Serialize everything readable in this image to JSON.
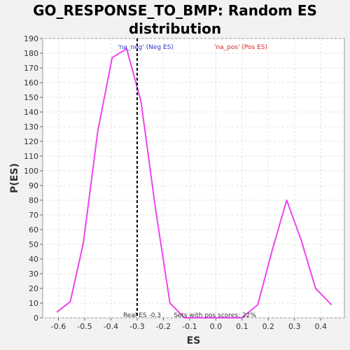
{
  "chart_data": {
    "type": "line",
    "title_line1": "GO_RESPONSE_TO_BMP: Random ES",
    "title_line2": "distribution",
    "xlabel": "ES",
    "ylabel": "P(ES)",
    "xlim": [
      -0.66,
      0.49
    ],
    "ylim": [
      0,
      190
    ],
    "xticks": [
      -0.6,
      -0.5,
      -0.4,
      -0.3,
      -0.2,
      -0.1,
      0.0,
      0.1,
      0.2,
      0.3,
      0.4
    ],
    "xtick_labels": [
      "-0.6",
      "-0.5",
      "-0.4",
      "-0.3",
      "-0.2",
      "-0.1",
      "0.0",
      "0.1",
      "0.2",
      "0.3",
      "0.4"
    ],
    "yticks": [
      0,
      10,
      20,
      30,
      40,
      50,
      60,
      70,
      80,
      90,
      100,
      110,
      120,
      130,
      140,
      150,
      160,
      170,
      180,
      190
    ],
    "grid": true,
    "series": [
      {
        "color": "#ee44ee",
        "x": [
          -0.605,
          -0.555,
          -0.505,
          -0.45,
          -0.395,
          -0.34,
          -0.285,
          -0.23,
          -0.175,
          -0.12,
          -0.065,
          -0.01,
          0.045,
          0.1,
          0.16,
          0.215,
          0.27,
          0.325,
          0.38,
          0.44
        ],
        "y": [
          4,
          11,
          51,
          127,
          177,
          183,
          147,
          74,
          10,
          0,
          0,
          0,
          0,
          0,
          9,
          46,
          80,
          53,
          20,
          9
        ]
      }
    ],
    "real_es": -0.3,
    "annotations": {
      "real_es_label": "Real ES -0.3",
      "pos_scores_label": "Sets with pos scores: 22%",
      "neg_label": "'na_neg' (Neg ES)",
      "pos_label": "'na_pos' (Pos ES)",
      "neg_color": "#3333cc",
      "pos_color": "#dd2222"
    }
  }
}
